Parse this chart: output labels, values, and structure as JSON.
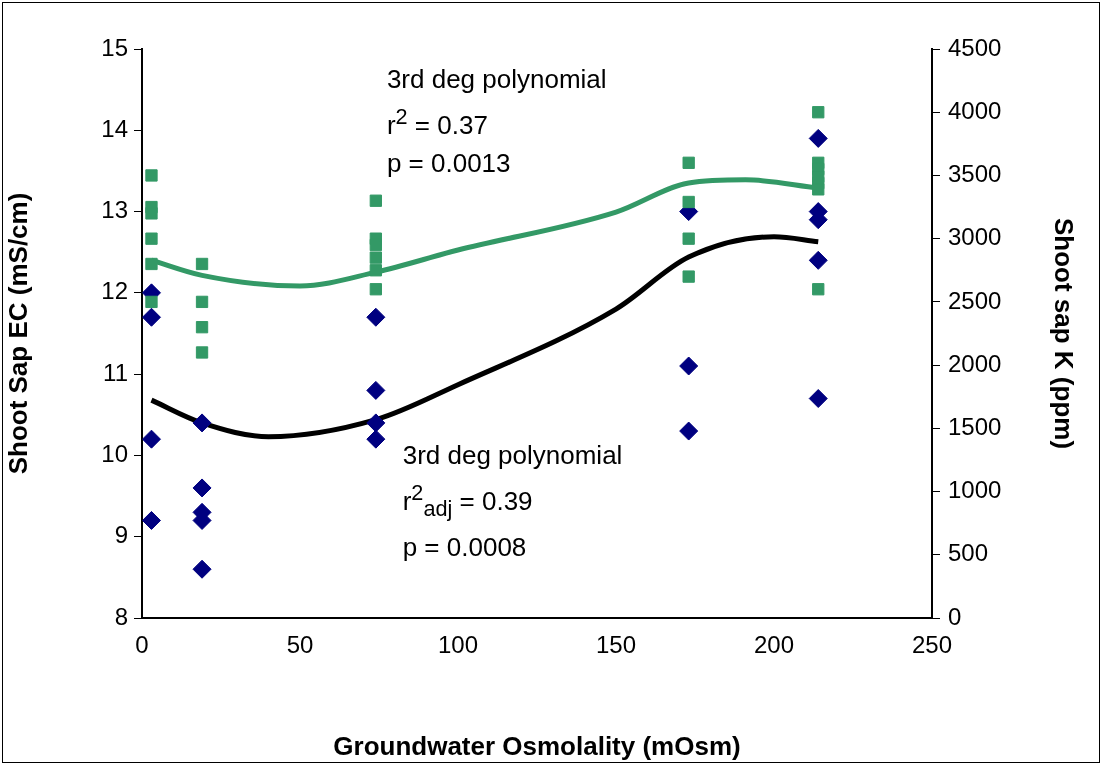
{
  "chart_data": {
    "type": "scatter",
    "xlabel": "Groundwater Osmolality (mOsm)",
    "ylabel": "Shoot Sap EC (mS/cm)",
    "y2label": "Shoot sap K (ppm)",
    "xlim": [
      0,
      250
    ],
    "xticks": [
      0,
      50,
      100,
      150,
      200,
      250
    ],
    "ylim": [
      8,
      15
    ],
    "yticks": [
      8,
      9,
      10,
      11,
      12,
      13,
      14,
      15
    ],
    "y2lim": [
      0,
      4500
    ],
    "y2ticks": [
      0,
      500,
      1000,
      1500,
      2000,
      2500,
      3000,
      3500,
      4000,
      4500
    ],
    "grid": false,
    "legend": false,
    "annotations": [
      "3rd deg polynomial\nr$^{2}$ = 0.37\np = 0.0013",
      "3rd deg polynomial\nr$^{2}$$_{adj}$ = 0.39\np = 0.0008"
    ],
    "series": [
      {
        "type": "scatter",
        "axis": "y2",
        "color": "#339966",
        "marker": "square",
        "x": [
          3,
          3,
          3,
          3,
          3,
          3,
          19,
          19,
          19,
          19,
          74,
          74,
          74,
          74,
          74,
          74,
          173,
          173,
          173,
          173,
          214,
          214,
          214,
          214,
          214,
          214,
          214
        ],
        "values": [
          3500,
          3250,
          3200,
          3000,
          2800,
          2500,
          2800,
          2500,
          2300,
          2100,
          3300,
          3000,
          2950,
          2850,
          2750,
          2600,
          3600,
          3290,
          3000,
          2700,
          4000,
          3600,
          3550,
          3490,
          3440,
          3390,
          2600
        ]
      },
      {
        "type": "scatter",
        "axis": "y",
        "color": "#000080",
        "marker": "diamond",
        "x": [
          3,
          3,
          3,
          3,
          19,
          19,
          19,
          19,
          19,
          74,
          74,
          74,
          74,
          173,
          173,
          173,
          214,
          214,
          214,
          214,
          214
        ],
        "values": [
          12.0,
          11.7,
          10.2,
          9.2,
          10.4,
          9.6,
          9.3,
          9.2,
          8.6,
          11.7,
          10.8,
          10.4,
          10.2,
          13.0,
          11.1,
          10.3,
          13.9,
          13.0,
          12.9,
          12.4,
          10.7
        ]
      },
      {
        "type": "line",
        "axis": "y",
        "color": "#000000",
        "marker": "none",
        "x": [
          3,
          19,
          40,
          74,
          100,
          150,
          173,
          200,
          214
        ],
        "values": [
          10.68,
          10.4,
          10.23,
          10.44,
          10.87,
          11.8,
          12.44,
          12.69,
          12.63
        ]
      },
      {
        "type": "line",
        "axis": "y2",
        "color": "#339966",
        "marker": "none",
        "x": [
          3,
          19,
          50,
          74,
          100,
          150,
          173,
          191,
          214
        ],
        "values": [
          2830,
          2710,
          2625,
          2735,
          2910,
          3210,
          3440,
          3465,
          3400
        ]
      }
    ]
  }
}
